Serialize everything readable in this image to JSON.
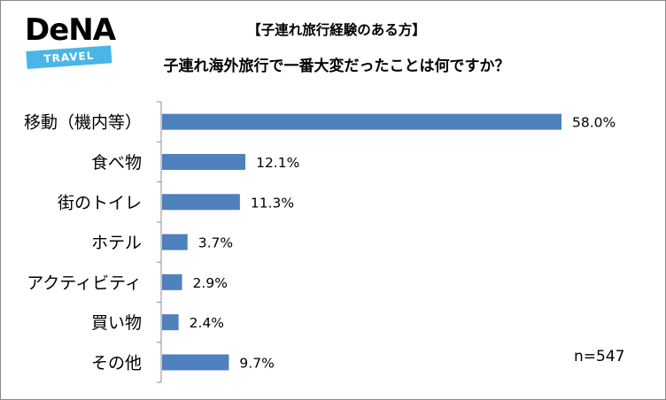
{
  "logo": {
    "brand": "DeNA",
    "sub": "TRAVEL"
  },
  "header": {
    "title_line1": "【子連れ旅行経験のある方】",
    "title_line2": "子連れ海外旅行で一番大変だったことは何ですか？"
  },
  "footnote": "n=547",
  "chart_data": {
    "type": "bar",
    "orientation": "horizontal",
    "categories": [
      "移動（機内等）",
      "食べ物",
      "街のトイレ",
      "ホテル",
      "アクティビティ",
      "買い物",
      "その他"
    ],
    "values": [
      58.0,
      12.1,
      11.3,
      3.7,
      2.9,
      2.4,
      9.7
    ],
    "value_labels": [
      "58.0%",
      "12.1%",
      "11.3%",
      "3.7%",
      "2.9%",
      "2.4%",
      "9.7%"
    ],
    "unit": "%",
    "bar_color": "#4f81bd",
    "grid": false,
    "legend": "none",
    "xlim": [
      0,
      60
    ]
  }
}
